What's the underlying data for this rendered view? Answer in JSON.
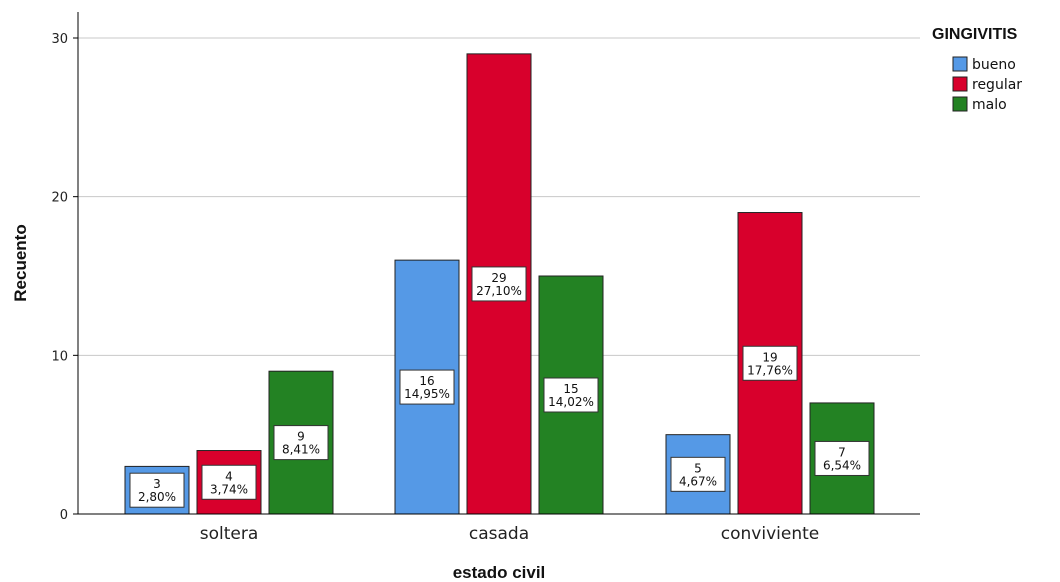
{
  "chart_data": {
    "type": "bar",
    "categories": [
      "soltera",
      "casada",
      "conviviente"
    ],
    "series": [
      {
        "name": "bueno",
        "color": "#5599e6",
        "values": [
          3,
          16,
          5
        ],
        "percents": [
          "2,80%",
          "14,95%",
          "4,67%"
        ]
      },
      {
        "name": "regular",
        "color": "#d8002c",
        "values": [
          4,
          29,
          19
        ],
        "percents": [
          "3,74%",
          "27,10%",
          "17,76%"
        ]
      },
      {
        "name": "malo",
        "color": "#238223",
        "values": [
          9,
          15,
          7
        ],
        "percents": [
          "8,41%",
          "14,02%",
          "6,54%"
        ]
      }
    ],
    "xlabel": "estado civil",
    "ylabel": "Recuento",
    "ylim": [
      0,
      30
    ],
    "yticks": [
      0,
      10,
      20,
      30
    ],
    "grid": true,
    "legend_title": "GINGIVITIS",
    "legend_position": "top-right"
  }
}
